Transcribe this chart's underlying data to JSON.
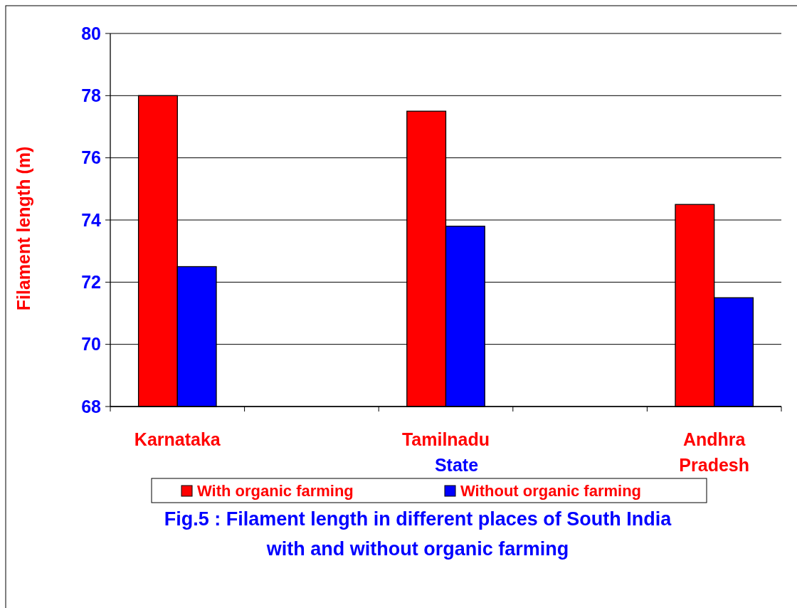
{
  "chart_data": {
    "type": "bar",
    "title": "Fig.5 : Filament length in different places of South India with and without organic farming",
    "xlabel": "State",
    "ylabel": "Filament length (m)",
    "categories": [
      "Karnataka",
      null,
      "Tamilnadu",
      null,
      "Andhra Pradesh"
    ],
    "series": [
      {
        "name": "With organic farming",
        "color": "#ff0000",
        "values": [
          78,
          null,
          77.5,
          null,
          74.5
        ]
      },
      {
        "name": "Without organic farming",
        "color": "#0000ff",
        "values": [
          72.5,
          null,
          73.8,
          null,
          71.5
        ]
      }
    ],
    "ylim": [
      68,
      80
    ],
    "yticks": [
      68,
      70,
      72,
      74,
      76,
      78,
      80
    ],
    "grid": "y",
    "legend": "bottom"
  }
}
